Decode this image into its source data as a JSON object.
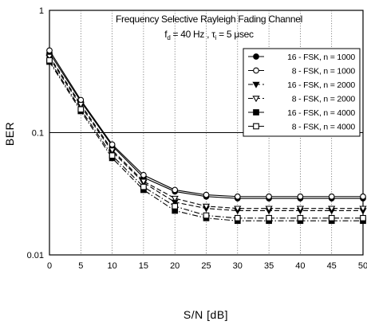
{
  "chart_data": {
    "type": "line",
    "title": "Frequency Selective Rayleigh Fading Channel",
    "subtitle": {
      "fd_main": "f",
      "fd_sub": "d",
      "fd_rest": " = 40 Hz , ",
      "tau_main": "τ",
      "tau_sub": "i",
      "tau_rest": " = 5 μsec"
    },
    "xlabel": "S/N [dB]",
    "ylabel": "BER",
    "x": [
      0,
      5,
      10,
      15,
      20,
      25,
      30,
      35,
      40,
      45,
      50
    ],
    "xlim": [
      0,
      50
    ],
    "ylim": [
      0.01,
      1
    ],
    "y_scale": "log",
    "x_ticks": [
      "0",
      "5",
      "10",
      "15",
      "20",
      "25",
      "30",
      "35",
      "40",
      "45",
      "50"
    ],
    "y_ticks": [
      "1",
      "0.1",
      "0.01"
    ],
    "y_tick_values": [
      1,
      0.1,
      0.01
    ],
    "grid": "vertical dotted lines at x ticks; horizontal line at 0.1",
    "legend_position": "top-right",
    "series": [
      {
        "name": "16 - FSK, n = 1000",
        "marker": "circle-filled",
        "dash": "solid",
        "values": [
          0.45,
          0.18,
          0.078,
          0.043,
          0.033,
          0.03,
          0.029,
          0.029,
          0.029,
          0.029,
          0.029
        ]
      },
      {
        "name": "8 - FSK, n = 1000",
        "marker": "circle-open",
        "dash": "solid",
        "values": [
          0.47,
          0.185,
          0.08,
          0.045,
          0.034,
          0.031,
          0.03,
          0.03,
          0.03,
          0.03,
          0.03
        ]
      },
      {
        "name": "16 - FSK, n = 2000",
        "marker": "triangle-down-filled",
        "dash": "dashed",
        "values": [
          0.41,
          0.165,
          0.07,
          0.039,
          0.027,
          0.024,
          0.023,
          0.023,
          0.023,
          0.023,
          0.023
        ]
      },
      {
        "name": "8 - FSK, n = 2000",
        "marker": "triangle-down-open",
        "dash": "dashed",
        "values": [
          0.42,
          0.17,
          0.072,
          0.04,
          0.029,
          0.025,
          0.024,
          0.024,
          0.024,
          0.024,
          0.024
        ]
      },
      {
        "name": "16 - FSK, n = 4000",
        "marker": "square-filled",
        "dash": "dashdot",
        "values": [
          0.38,
          0.15,
          0.062,
          0.034,
          0.023,
          0.02,
          0.019,
          0.019,
          0.019,
          0.019,
          0.019
        ]
      },
      {
        "name": "8 - FSK, n = 4000",
        "marker": "square-open",
        "dash": "dashdot",
        "values": [
          0.39,
          0.155,
          0.065,
          0.036,
          0.025,
          0.021,
          0.02,
          0.02,
          0.02,
          0.02,
          0.02
        ]
      }
    ]
  }
}
